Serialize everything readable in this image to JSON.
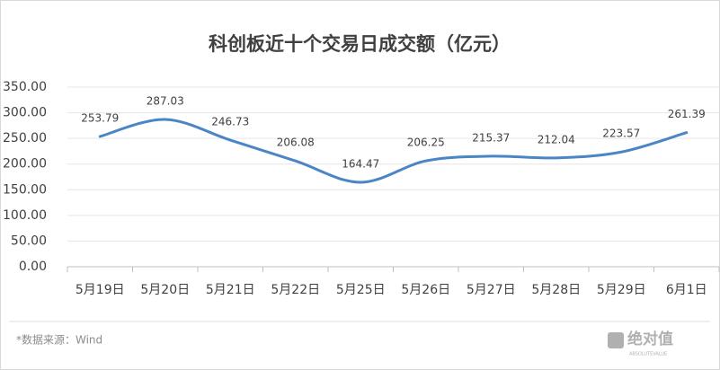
{
  "chart_data": {
    "type": "line",
    "title": "科创板近十个交易日成交额（亿元）",
    "categories": [
      "5月19日",
      "5月20日",
      "5月21日",
      "5月22日",
      "5月25日",
      "5月26日",
      "5月27日",
      "5月28日",
      "5月29日",
      "6月1日"
    ],
    "series": [
      {
        "name": "成交额",
        "color": "#4a86c5",
        "values": [
          253.79,
          287.03,
          246.73,
          206.08,
          164.47,
          206.25,
          215.37,
          212.04,
          223.57,
          261.39
        ]
      }
    ],
    "ylim": [
      0,
      350
    ],
    "yticks": [
      {
        "value": 0,
        "label": "0.00"
      },
      {
        "value": 50,
        "label": "50.00"
      },
      {
        "value": 100,
        "label": "100.00"
      },
      {
        "value": 150,
        "label": "150.00"
      },
      {
        "value": 200,
        "label": "200.00"
      },
      {
        "value": 250,
        "label": "250.00"
      },
      {
        "value": 300,
        "label": "300.00"
      },
      {
        "value": 350,
        "label": "350.00"
      }
    ],
    "grid": true,
    "source": "*数据来源：Wind",
    "watermark": "绝对值",
    "watermark_sub": "ABSOLUTEVALUE"
  }
}
